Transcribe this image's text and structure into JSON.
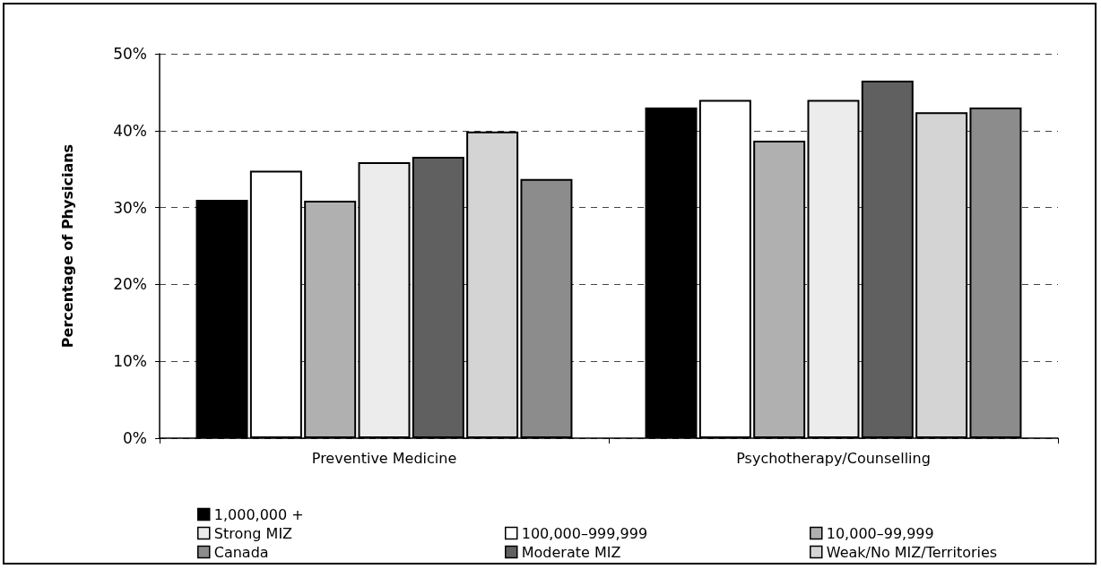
{
  "chart_data": {
    "type": "bar",
    "ylabel": "Percentage of Physicians",
    "categories": [
      "Preventive Medicine",
      "Psychotherapy/Counselling"
    ],
    "series": [
      {
        "name": "1,000,000 +",
        "color": "#000000",
        "values": [
          31.0,
          43.0
        ]
      },
      {
        "name": "100,000–999,999",
        "color": "#ffffff",
        "values": [
          34.8,
          44.0
        ]
      },
      {
        "name": "10,000–99,999",
        "color": "#b0b0b0",
        "values": [
          30.9,
          38.7
        ]
      },
      {
        "name": "Strong MIZ",
        "color": "#ececec",
        "values": [
          35.9,
          44.0
        ]
      },
      {
        "name": "Moderate MIZ",
        "color": "#606060",
        "values": [
          36.6,
          46.5
        ]
      },
      {
        "name": "Weak/No MIZ/Territories",
        "color": "#d4d4d4",
        "values": [
          39.9,
          42.4
        ]
      },
      {
        "name": "Canada",
        "color": "#8c8c8c",
        "values": [
          33.7,
          43.0
        ]
      }
    ],
    "ylim": [
      0,
      50
    ],
    "yticks": [
      {
        "value": 0,
        "label": "0%"
      },
      {
        "value": 10,
        "label": "10%"
      },
      {
        "value": 20,
        "label": "20%"
      },
      {
        "value": 30,
        "label": "30%"
      },
      {
        "value": 40,
        "label": "40%"
      },
      {
        "value": 50,
        "label": "50%"
      }
    ],
    "grid": "y",
    "legend": "bottom"
  }
}
